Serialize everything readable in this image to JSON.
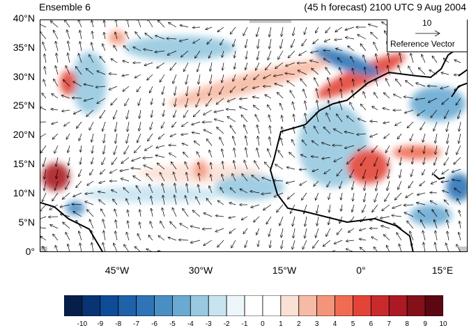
{
  "header": {
    "left_title": "Ensemble 6",
    "right_title": "(45 h forecast) 2100 UTC 9 Aug 2004"
  },
  "map": {
    "lat_labels": [
      "40°N",
      "35°N",
      "30°N",
      "25°N",
      "20°N",
      "15°N",
      "10°N",
      "5°N",
      "0°"
    ],
    "lon_labels": [
      "45°W",
      "30°W",
      "15°W",
      "0°",
      "15°E"
    ],
    "lat_range": [
      0,
      40
    ],
    "lon_range": [
      -58,
      18
    ],
    "field": "anomaly shading with wind vectors",
    "coastline_color": "#000000"
  },
  "reference_vector": {
    "magnitude": "10",
    "label": "Reference Vector"
  },
  "colorbar": {
    "labels": [
      "-10",
      "-9",
      "-8",
      "-7",
      "-6",
      "-5",
      "-4",
      "-3",
      "-2",
      "-1",
      "0",
      "1",
      "2",
      "3",
      "4",
      "5",
      "6",
      "7",
      "8",
      "9",
      "10"
    ],
    "colors": [
      "#061f4a",
      "#083474",
      "#0f4c97",
      "#1f62aa",
      "#2f74b6",
      "#4a8fc4",
      "#6aaad2",
      "#98c9e0",
      "#c8e4f1",
      "#ecf6fb",
      "#ffffff",
      "#ffffff",
      "#fbe0d6",
      "#f7bba5",
      "#f4957a",
      "#ef6c52",
      "#e34437",
      "#c92a2b",
      "#ab1a24",
      "#841119",
      "#5c0712"
    ]
  }
}
